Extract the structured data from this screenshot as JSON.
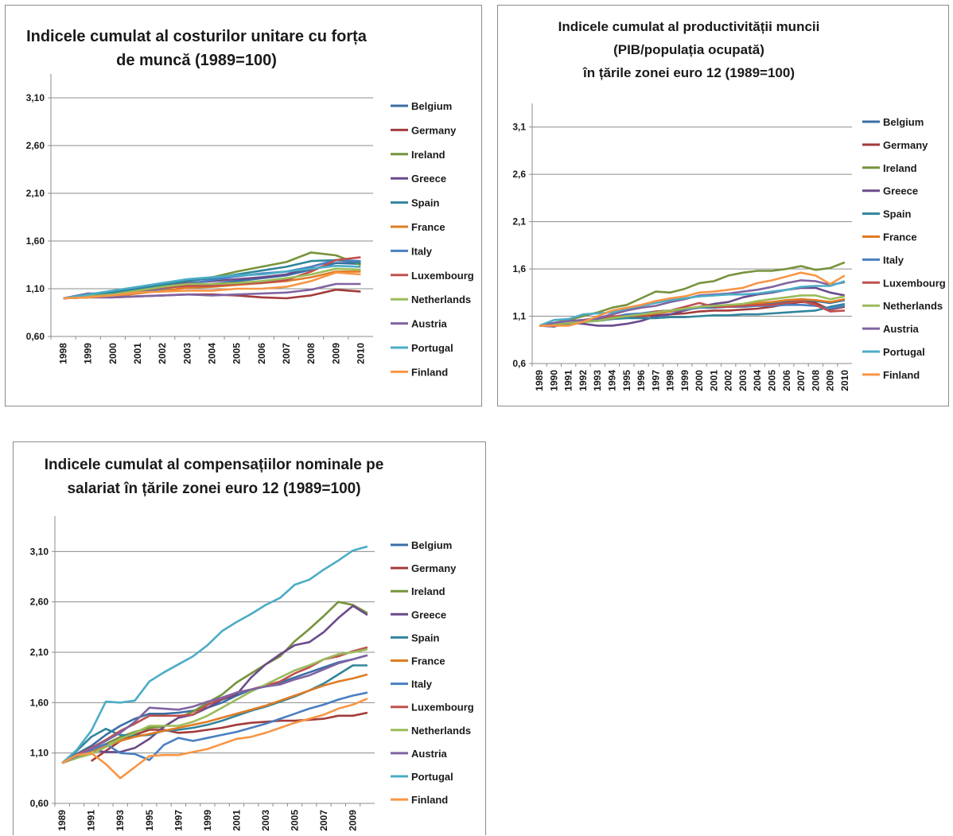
{
  "colors": [
    "#3a6ea5",
    "#a33b3b",
    "#77933c",
    "#6a4a8a",
    "#31859c",
    "#e07c24",
    "#4a7fc1",
    "#c0504d",
    "#9bbb59",
    "#8064a2",
    "#4bacc6",
    "#f79646"
  ],
  "chart_data": [
    {
      "type": "line",
      "title": [
        "Indicele cumulat al costurilor unitare cu forța",
        "de muncă (1989=100)"
      ],
      "x": [
        "1998",
        "1999",
        "2000",
        "2001",
        "2002",
        "2003",
        "2004",
        "2005",
        "2006",
        "2007",
        "2008",
        "2009",
        "2010"
      ],
      "yticks": [
        "3,10",
        "2,60",
        "2,10",
        "1,60",
        "1,10",
        "0,60"
      ],
      "ylim": [
        0.6,
        3.35
      ],
      "legend": "right",
      "series": [
        {
          "name": "Belgium",
          "values": [
            1.0,
            1.02,
            1.04,
            1.08,
            1.11,
            1.13,
            1.15,
            1.18,
            1.21,
            1.24,
            1.3,
            1.37,
            1.36
          ]
        },
        {
          "name": "Germany",
          "values": [
            1.0,
            1.01,
            1.01,
            1.02,
            1.03,
            1.04,
            1.04,
            1.03,
            1.01,
            1.0,
            1.03,
            1.09,
            1.07
          ]
        },
        {
          "name": "Ireland",
          "values": [
            1.0,
            1.03,
            1.07,
            1.11,
            1.16,
            1.19,
            1.22,
            1.28,
            1.33,
            1.38,
            1.48,
            1.45,
            1.35
          ]
        },
        {
          "name": "Greece",
          "values": [
            1.0,
            1.05,
            1.05,
            1.1,
            1.14,
            1.16,
            1.18,
            1.2,
            1.22,
            1.25,
            1.33,
            1.4,
            1.38
          ]
        },
        {
          "name": "Spain",
          "values": [
            1.0,
            1.03,
            1.06,
            1.1,
            1.14,
            1.18,
            1.21,
            1.25,
            1.29,
            1.33,
            1.39,
            1.4,
            1.37
          ]
        },
        {
          "name": "France",
          "values": [
            1.0,
            1.01,
            1.02,
            1.05,
            1.08,
            1.11,
            1.12,
            1.14,
            1.16,
            1.18,
            1.22,
            1.28,
            1.28
          ]
        },
        {
          "name": "Italy",
          "values": [
            1.0,
            1.02,
            1.03,
            1.06,
            1.1,
            1.15,
            1.19,
            1.23,
            1.26,
            1.28,
            1.33,
            1.4,
            1.39
          ]
        },
        {
          "name": "Luxembourg",
          "values": [
            1.0,
            1.01,
            1.03,
            1.08,
            1.11,
            1.13,
            1.13,
            1.15,
            1.16,
            1.19,
            1.28,
            1.4,
            1.43
          ]
        },
        {
          "name": "Netherlands",
          "values": [
            1.0,
            1.02,
            1.04,
            1.08,
            1.12,
            1.15,
            1.15,
            1.16,
            1.18,
            1.21,
            1.25,
            1.31,
            1.3
          ]
        },
        {
          "name": "Austria",
          "values": [
            1.0,
            1.01,
            1.01,
            1.02,
            1.03,
            1.04,
            1.03,
            1.04,
            1.05,
            1.06,
            1.09,
            1.15,
            1.15
          ]
        },
        {
          "name": "Portugal",
          "values": [
            1.0,
            1.04,
            1.08,
            1.12,
            1.16,
            1.2,
            1.22,
            1.24,
            1.25,
            1.28,
            1.31,
            1.34,
            1.33
          ]
        },
        {
          "name": "Finland",
          "values": [
            1.0,
            1.01,
            1.03,
            1.06,
            1.07,
            1.08,
            1.08,
            1.1,
            1.1,
            1.12,
            1.18,
            1.27,
            1.25
          ]
        }
      ]
    },
    {
      "type": "line",
      "title": [
        "Indicele cumulat al productivității muncii",
        "(PIB/populația ocupată)",
        "în țările zonei euro 12 (1989=100)"
      ],
      "x": [
        "1989",
        "1990",
        "1991",
        "1992",
        "1993",
        "1994",
        "1995",
        "1996",
        "1997",
        "1998",
        "1999",
        "2000",
        "2001",
        "2002",
        "2003",
        "2004",
        "2005",
        "2006",
        "2007",
        "2008",
        "2009",
        "2010"
      ],
      "yticks": [
        "3,1",
        "2,6",
        "2,1",
        "1,6",
        "1,1",
        "0,6"
      ],
      "ylim": [
        0.6,
        3.35
      ],
      "legend": "right",
      "series": [
        {
          "name": "Belgium",
          "values": [
            1.0,
            1.02,
            1.04,
            1.06,
            1.07,
            1.09,
            1.1,
            1.11,
            1.13,
            1.15,
            1.17,
            1.19,
            1.19,
            1.2,
            1.21,
            1.23,
            1.24,
            1.25,
            1.27,
            1.26,
            1.24,
            1.27
          ]
        },
        {
          "name": "Germany",
          "values": [
            1.0,
            1.02,
            1.04,
            1.06,
            1.07,
            1.08,
            1.09,
            1.1,
            1.11,
            1.12,
            1.13,
            1.15,
            1.16,
            1.16,
            1.17,
            1.18,
            1.2,
            1.23,
            1.25,
            1.24,
            1.17,
            1.2
          ]
        },
        {
          "name": "Ireland",
          "values": [
            1.0,
            1.03,
            1.06,
            1.1,
            1.14,
            1.19,
            1.22,
            1.29,
            1.36,
            1.35,
            1.39,
            1.45,
            1.47,
            1.53,
            1.56,
            1.58,
            1.58,
            1.6,
            1.63,
            1.59,
            1.61,
            1.67
          ]
        },
        {
          "name": "Greece",
          "values": [
            1.0,
            0.99,
            1.03,
            1.02,
            1.0,
            1.0,
            1.02,
            1.05,
            1.1,
            1.12,
            1.16,
            1.2,
            1.23,
            1.25,
            1.3,
            1.33,
            1.35,
            1.38,
            1.4,
            1.4,
            1.35,
            1.32
          ]
        },
        {
          "name": "Spain",
          "values": [
            1.0,
            1.01,
            1.02,
            1.04,
            1.05,
            1.07,
            1.08,
            1.08,
            1.08,
            1.09,
            1.09,
            1.1,
            1.11,
            1.11,
            1.12,
            1.12,
            1.13,
            1.14,
            1.15,
            1.16,
            1.2,
            1.23
          ]
        },
        {
          "name": "France",
          "values": [
            1.0,
            1.02,
            1.03,
            1.05,
            1.06,
            1.08,
            1.1,
            1.11,
            1.13,
            1.15,
            1.17,
            1.19,
            1.2,
            1.21,
            1.22,
            1.24,
            1.25,
            1.27,
            1.28,
            1.27,
            1.25,
            1.28
          ]
        },
        {
          "name": "Italy",
          "values": [
            1.0,
            1.02,
            1.03,
            1.05,
            1.06,
            1.09,
            1.12,
            1.13,
            1.15,
            1.16,
            1.17,
            1.19,
            1.2,
            1.2,
            1.2,
            1.21,
            1.21,
            1.22,
            1.22,
            1.21,
            1.18,
            1.21
          ]
        },
        {
          "name": "Luxembourg",
          "values": [
            1.0,
            1.02,
            1.05,
            1.06,
            1.08,
            1.1,
            1.1,
            1.11,
            1.15,
            1.16,
            1.2,
            1.24,
            1.2,
            1.2,
            1.21,
            1.22,
            1.22,
            1.24,
            1.26,
            1.22,
            1.15,
            1.16
          ]
        },
        {
          "name": "Netherlands",
          "values": [
            1.0,
            1.02,
            1.03,
            1.04,
            1.05,
            1.08,
            1.1,
            1.12,
            1.14,
            1.16,
            1.18,
            1.2,
            1.21,
            1.22,
            1.23,
            1.26,
            1.28,
            1.3,
            1.32,
            1.32,
            1.28,
            1.31
          ]
        },
        {
          "name": "Austria",
          "values": [
            1.0,
            1.03,
            1.05,
            1.06,
            1.08,
            1.12,
            1.16,
            1.19,
            1.21,
            1.25,
            1.28,
            1.32,
            1.33,
            1.34,
            1.36,
            1.38,
            1.41,
            1.45,
            1.48,
            1.47,
            1.43,
            1.46
          ]
        },
        {
          "name": "Portugal",
          "values": [
            1.0,
            1.06,
            1.07,
            1.12,
            1.13,
            1.14,
            1.18,
            1.21,
            1.24,
            1.27,
            1.29,
            1.31,
            1.32,
            1.33,
            1.33,
            1.34,
            1.36,
            1.38,
            1.41,
            1.42,
            1.42,
            1.47
          ]
        },
        {
          "name": "Finland",
          "values": [
            1.0,
            1.0,
            1.0,
            1.04,
            1.1,
            1.16,
            1.19,
            1.22,
            1.26,
            1.29,
            1.31,
            1.35,
            1.36,
            1.38,
            1.4,
            1.45,
            1.48,
            1.52,
            1.56,
            1.53,
            1.44,
            1.53
          ]
        }
      ]
    },
    {
      "type": "line",
      "title": [
        "Indicele cumulat al compensațiilor nominale pe",
        "salariat în țările zonei euro 12 (1989=100)"
      ],
      "x": [
        "1989",
        "1990",
        "1991",
        "1992",
        "1993",
        "1994",
        "1995",
        "1996",
        "1997",
        "1998",
        "1999",
        "2000",
        "2001",
        "2002",
        "2003",
        "2004",
        "2005",
        "2006",
        "2007",
        "2008",
        "2009",
        "2010"
      ],
      "xtick_labels": [
        "1989",
        "",
        "1991",
        "",
        "1993",
        "",
        "1995",
        "",
        "1997",
        "",
        "1999",
        "",
        "2001",
        "",
        "2003",
        "",
        "2005",
        "",
        "2007",
        "",
        "2009",
        ""
      ],
      "yticks": [
        "3,10",
        "2,60",
        "2,10",
        "1,60",
        "1,10",
        "0,60"
      ],
      "ylim": [
        0.6,
        3.45
      ],
      "legend": "right",
      "series": [
        {
          "name": "Belgium",
          "values": [
            1.0,
            1.09,
            1.17,
            1.28,
            1.37,
            1.44,
            1.49,
            1.49,
            1.5,
            1.52,
            1.55,
            1.6,
            1.67,
            1.73,
            1.77,
            1.8,
            1.85,
            1.9,
            1.95,
            2.0,
            2.03,
            2.07
          ]
        },
        {
          "name": "Germany",
          "values": [
            null,
            null,
            1.02,
            1.12,
            1.22,
            1.28,
            1.33,
            1.33,
            1.3,
            1.31,
            1.33,
            1.35,
            1.38,
            1.4,
            1.41,
            1.42,
            1.42,
            1.43,
            1.44,
            1.47,
            1.47,
            1.5
          ]
        },
        {
          "name": "Ireland",
          "values": [
            1.0,
            1.06,
            1.12,
            1.19,
            1.26,
            1.31,
            1.35,
            1.36,
            1.45,
            1.51,
            1.6,
            1.68,
            1.8,
            1.89,
            1.98,
            2.06,
            2.21,
            2.33,
            2.46,
            2.6,
            2.57,
            2.49
          ]
        },
        {
          "name": "Greece",
          "values": [
            1.0,
            1.07,
            1.13,
            1.11,
            1.11,
            1.15,
            1.24,
            1.36,
            1.45,
            1.48,
            1.55,
            1.63,
            1.68,
            1.85,
            1.98,
            2.08,
            2.17,
            2.2,
            2.3,
            2.44,
            2.56,
            2.47
          ]
        },
        {
          "name": "Spain",
          "values": [
            1.0,
            1.12,
            1.26,
            1.34,
            1.28,
            1.27,
            1.28,
            1.32,
            1.33,
            1.35,
            1.38,
            1.42,
            1.47,
            1.52,
            1.56,
            1.61,
            1.66,
            1.72,
            1.79,
            1.88,
            1.97,
            1.97
          ]
        },
        {
          "name": "France",
          "values": [
            1.0,
            1.06,
            1.12,
            1.17,
            1.22,
            1.26,
            1.29,
            1.32,
            1.35,
            1.38,
            1.41,
            1.45,
            1.49,
            1.53,
            1.57,
            1.62,
            1.67,
            1.72,
            1.77,
            1.81,
            1.84,
            1.88
          ]
        },
        {
          "name": "Italy",
          "values": [
            1.0,
            1.07,
            1.13,
            1.19,
            1.1,
            1.09,
            1.03,
            1.18,
            1.25,
            1.22,
            1.25,
            1.28,
            1.31,
            1.35,
            1.39,
            1.44,
            1.49,
            1.54,
            1.58,
            1.63,
            1.67,
            1.7
          ]
        },
        {
          "name": "Luxembourg",
          "values": [
            1.0,
            1.08,
            1.15,
            1.23,
            1.32,
            1.39,
            1.47,
            1.47,
            1.47,
            1.48,
            1.58,
            1.64,
            1.7,
            1.73,
            1.77,
            1.81,
            1.89,
            1.95,
            2.03,
            2.06,
            2.11,
            2.15
          ]
        },
        {
          "name": "Netherlands",
          "values": [
            1.0,
            1.05,
            1.09,
            1.16,
            1.24,
            1.3,
            1.37,
            1.37,
            1.37,
            1.41,
            1.47,
            1.55,
            1.63,
            1.71,
            1.78,
            1.85,
            1.92,
            1.97,
            2.03,
            2.08,
            2.1,
            2.13
          ]
        },
        {
          "name": "Austria",
          "values": [
            1.0,
            1.07,
            1.14,
            1.22,
            1.3,
            1.41,
            1.55,
            1.54,
            1.53,
            1.56,
            1.61,
            1.65,
            1.7,
            1.73,
            1.76,
            1.78,
            1.83,
            1.87,
            1.93,
            1.99,
            2.03,
            2.07
          ]
        },
        {
          "name": "Portugal",
          "values": [
            1.0,
            1.13,
            1.32,
            1.61,
            1.6,
            1.62,
            1.81,
            1.9,
            1.98,
            2.06,
            2.17,
            2.31,
            2.4,
            2.48,
            2.57,
            2.64,
            2.77,
            2.82,
            2.92,
            3.01,
            3.11,
            3.15
          ]
        },
        {
          "name": "Finland",
          "values": [
            1.0,
            1.08,
            1.1,
            0.99,
            0.85,
            0.96,
            1.07,
            1.08,
            1.08,
            1.11,
            1.14,
            1.19,
            1.24,
            1.26,
            1.3,
            1.35,
            1.4,
            1.44,
            1.48,
            1.54,
            1.58,
            1.64
          ]
        }
      ]
    }
  ]
}
